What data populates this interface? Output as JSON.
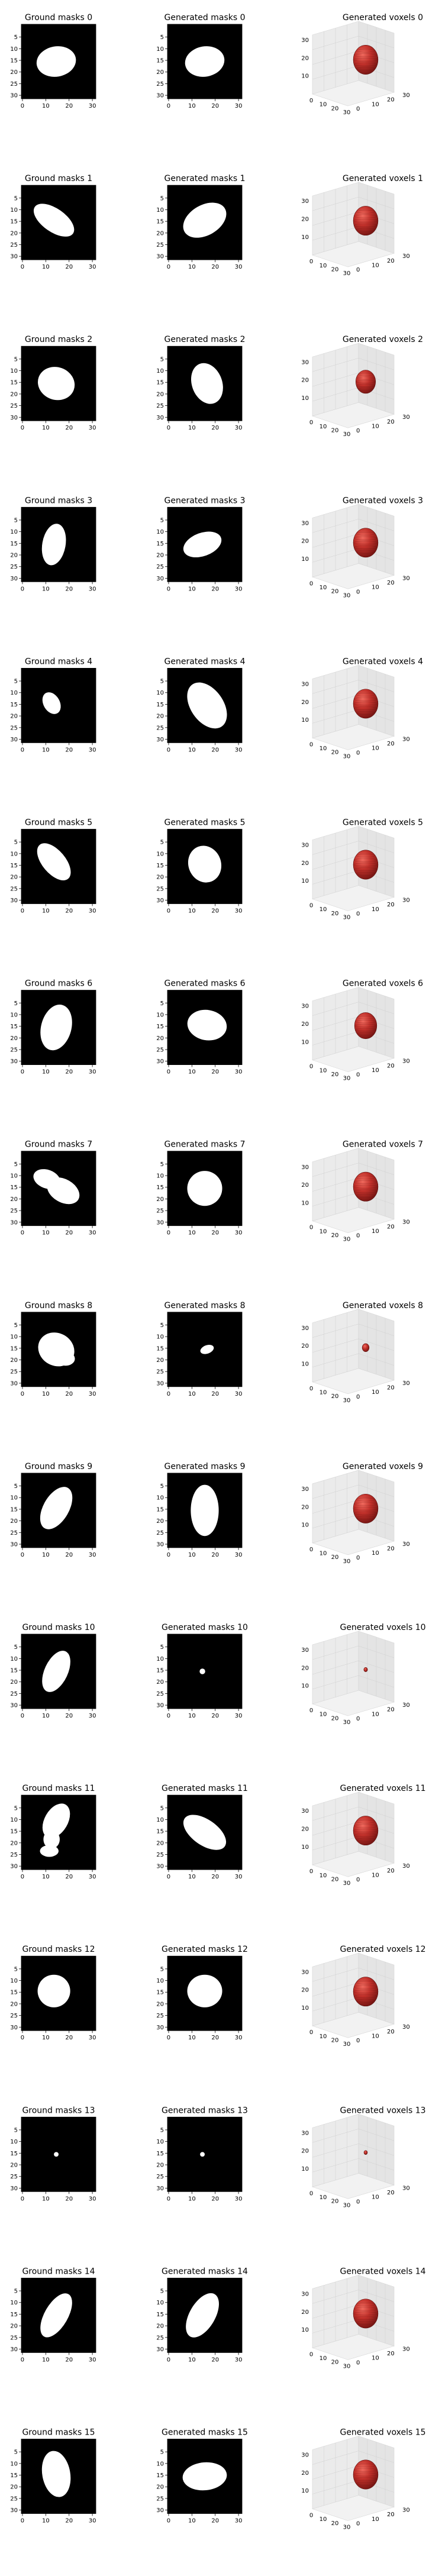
{
  "figure": {
    "background": "#ffffff",
    "mask_background": "#000000",
    "mask_foreground": "#ffffff",
    "voxel_color": "#c0302a"
  },
  "chart_data": {
    "type": "grid_of_images",
    "rows": 16,
    "columns": [
      "Ground masks",
      "Generated masks",
      "Generated voxels"
    ],
    "mask_axis": {
      "xlim": [
        0,
        32
      ],
      "ylim": [
        32,
        0
      ],
      "x_ticks": [
        0,
        10,
        20,
        30
      ],
      "y_ticks": [
        5,
        10,
        15,
        20,
        25,
        30
      ]
    },
    "voxel_axis": {
      "x_ticks": [
        0,
        10,
        20,
        30
      ],
      "y_ticks": [
        0,
        10,
        20,
        30
      ],
      "z_ticks": [
        10,
        20,
        30
      ]
    },
    "panels": [
      {
        "ground_title": "Ground masks 0",
        "generated_title": "Generated masks 0",
        "voxel_title": "Generated voxels 0",
        "ground": [
          {
            "cx": 15,
            "cy": 16,
            "rx": 8.5,
            "ry": 6.5,
            "rot": -10
          }
        ],
        "generated": [
          {
            "cx": 16,
            "cy": 16,
            "rx": 8.5,
            "ry": 6.5,
            "rot": -10
          }
        ],
        "voxel_scale": 1.0
      },
      {
        "ground_title": "Ground masks 1",
        "generated_title": "Generated masks 1",
        "voxel_title": "Generated voxels 1",
        "ground": [
          {
            "cx": 14,
            "cy": 15,
            "rx": 10,
            "ry": 5,
            "rot": 35
          }
        ],
        "generated": [
          {
            "cx": 16,
            "cy": 15,
            "rx": 10,
            "ry": 6.5,
            "rot": -30
          }
        ],
        "voxel_scale": 1.0
      },
      {
        "ground_title": "Ground masks 2",
        "generated_title": "Generated masks 2",
        "voxel_title": "Generated voxels 2",
        "ground": [
          {
            "cx": 15,
            "cy": 16,
            "rx": 8,
            "ry": 7,
            "rot": 20
          }
        ],
        "generated": [
          {
            "cx": 17,
            "cy": 16,
            "rx": 9,
            "ry": 6.5,
            "rot": 70
          }
        ],
        "voxel_scale": 0.8
      },
      {
        "ground_title": "Ground masks 3",
        "generated_title": "Generated masks 3",
        "voxel_title": "Generated voxels 3",
        "ground": [
          {
            "cx": 14,
            "cy": 16,
            "rx": 9,
            "ry": 5,
            "rot": 100
          }
        ],
        "generated": [
          {
            "cx": 15,
            "cy": 16,
            "rx": 8.5,
            "ry": 5,
            "rot": -20
          }
        ],
        "voxel_scale": 1.0
      },
      {
        "ground_title": "Ground masks 4",
        "generated_title": "Generated masks 4",
        "voxel_title": "Generated voxels 4",
        "ground": [
          {
            "cx": 13,
            "cy": 15,
            "rx": 5,
            "ry": 3.5,
            "rot": 60
          }
        ],
        "generated": [
          {
            "cx": 17,
            "cy": 16,
            "rx": 11,
            "ry": 7,
            "rot": 55
          }
        ],
        "voxel_scale": 1.0
      },
      {
        "ground_title": "Ground masks 5",
        "generated_title": "Generated masks 5",
        "voxel_title": "Generated voxels 5",
        "ground": [
          {
            "cx": 14,
            "cy": 14,
            "rx": 9.5,
            "ry": 5,
            "rot": 50
          }
        ],
        "generated": [
          {
            "cx": 16,
            "cy": 15,
            "rx": 8,
            "ry": 7,
            "rot": 70
          }
        ],
        "voxel_scale": 1.0
      },
      {
        "ground_title": "Ground masks 6",
        "generated_title": "Generated masks 6",
        "voxel_title": "Generated voxels 6",
        "ground": [
          {
            "cx": 15,
            "cy": 16,
            "rx": 10,
            "ry": 6.5,
            "rot": 105
          }
        ],
        "generated": [
          {
            "cx": 17,
            "cy": 15,
            "rx": 8.5,
            "ry": 6.5,
            "rot": 10
          }
        ],
        "voxel_scale": 0.9
      },
      {
        "ground_title": "Ground masks 7",
        "generated_title": "Generated masks 7",
        "voxel_title": "Generated voxels 7",
        "ground": [
          {
            "cx": 11,
            "cy": 12,
            "rx": 6,
            "ry": 4,
            "rot": 20
          },
          {
            "cx": 18,
            "cy": 17,
            "rx": 7.5,
            "ry": 5,
            "rot": 30
          }
        ],
        "generated": [
          {
            "cx": 16,
            "cy": 16,
            "rx": 7.5,
            "ry": 7.5,
            "rot": 0
          }
        ],
        "voxel_scale": 1.0
      },
      {
        "ground_title": "Ground masks 8",
        "generated_title": "Generated masks 8",
        "voxel_title": "Generated voxels 8",
        "ground": [
          {
            "cx": 15,
            "cy": 16,
            "rx": 8,
            "ry": 7,
            "rot": 30
          },
          {
            "cx": 19,
            "cy": 20,
            "rx": 4,
            "ry": 3,
            "rot": 0
          }
        ],
        "generated": [
          {
            "cx": 17,
            "cy": 16,
            "rx": 3,
            "ry": 1.8,
            "rot": -20
          }
        ],
        "voxel_scale": 0.28
      },
      {
        "ground_title": "Ground masks 9",
        "generated_title": "Generated masks 9",
        "voxel_title": "Generated voxels 9",
        "ground": [
          {
            "cx": 15,
            "cy": 15,
            "rx": 10,
            "ry": 5.5,
            "rot": 120
          }
        ],
        "generated": [
          {
            "cx": 16,
            "cy": 16,
            "rx": 11,
            "ry": 6,
            "rot": 90
          }
        ],
        "voxel_scale": 1.0
      },
      {
        "ground_title": "Ground masks 10",
        "generated_title": "Generated masks 10",
        "voxel_title": "Generated voxels 10",
        "ground": [
          {
            "cx": 15,
            "cy": 16,
            "rx": 9.5,
            "ry": 5,
            "rot": 115
          }
        ],
        "generated": [
          {
            "cx": 15,
            "cy": 16,
            "rx": 1.2,
            "ry": 1.2,
            "rot": 0
          }
        ],
        "voxel_scale": 0.15
      },
      {
        "ground_title": "Ground masks 11",
        "generated_title": "Generated masks 11",
        "voxel_title": "Generated voxels 11",
        "ground": [
          {
            "cx": 15,
            "cy": 11,
            "rx": 8,
            "ry": 5,
            "rot": 120
          },
          {
            "cx": 13,
            "cy": 19,
            "rx": 3.5,
            "ry": 4,
            "rot": 0
          },
          {
            "cx": 12,
            "cy": 24,
            "rx": 4,
            "ry": 2.5,
            "rot": 0
          }
        ],
        "generated": [
          {
            "cx": 16,
            "cy": 16,
            "rx": 10.5,
            "ry": 5.5,
            "rot": 35
          }
        ],
        "voxel_scale": 1.0
      },
      {
        "ground_title": "Ground masks 12",
        "generated_title": "Generated masks 12",
        "voxel_title": "Generated voxels 12",
        "ground": [
          {
            "cx": 14,
            "cy": 15,
            "rx": 7,
            "ry": 7,
            "rot": 0
          }
        ],
        "generated": [
          {
            "cx": 16,
            "cy": 15,
            "rx": 7.5,
            "ry": 7,
            "rot": 0
          }
        ],
        "voxel_scale": 1.0
      },
      {
        "ground_title": "Ground masks 13",
        "generated_title": "Generated masks 13",
        "voxel_title": "Generated voxels 13",
        "ground": [
          {
            "cx": 15,
            "cy": 16,
            "rx": 1,
            "ry": 1,
            "rot": 0
          }
        ],
        "generated": [
          {
            "cx": 15,
            "cy": 16,
            "rx": 1,
            "ry": 1,
            "rot": 0
          }
        ],
        "voxel_scale": 0.14
      },
      {
        "ground_title": "Ground masks 14",
        "generated_title": "Generated masks 14",
        "voxel_title": "Generated voxels 14",
        "ground": [
          {
            "cx": 15,
            "cy": 16,
            "rx": 10.5,
            "ry": 5,
            "rot": 120
          }
        ],
        "generated": [
          {
            "cx": 15,
            "cy": 16,
            "rx": 10.5,
            "ry": 5.5,
            "rot": 120
          }
        ],
        "voxel_scale": 1.0
      },
      {
        "ground_title": "Ground masks 15",
        "generated_title": "Generated masks 15",
        "voxel_title": "Generated voxels 15",
        "ground": [
          {
            "cx": 15,
            "cy": 15,
            "rx": 10,
            "ry": 6,
            "rot": 80
          }
        ],
        "generated": [
          {
            "cx": 16,
            "cy": 16,
            "rx": 9.5,
            "ry": 6,
            "rot": -5
          }
        ],
        "voxel_scale": 1.0
      }
    ]
  }
}
